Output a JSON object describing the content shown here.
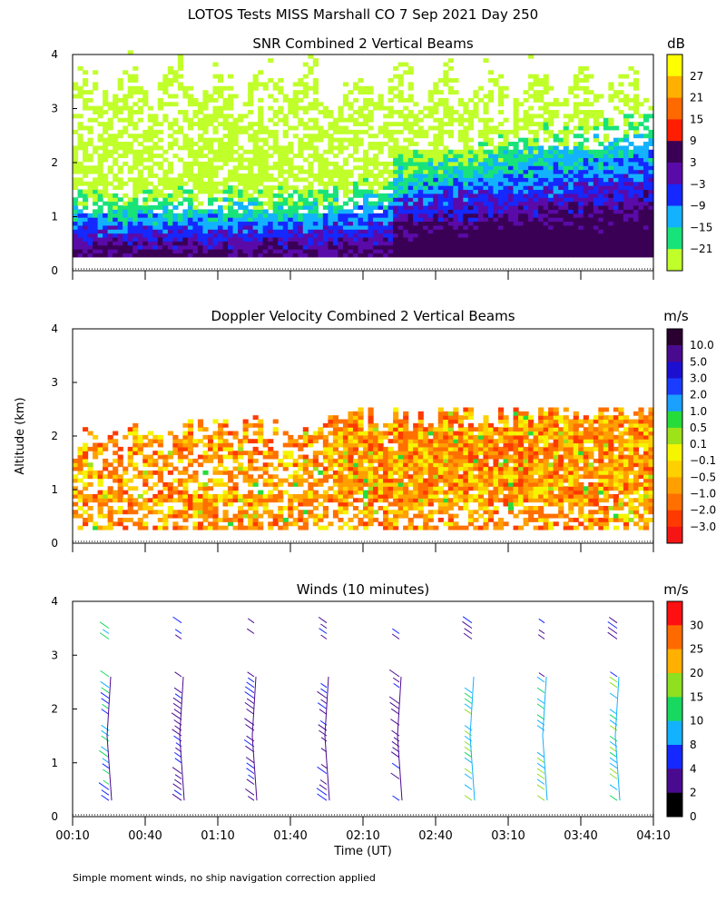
{
  "page_title": "LOTOS Tests MISS Marshall CO   7 Sep 2021 Day 250",
  "footnote": "Simple moment winds, no ship navigation correction applied",
  "chart_data": [
    {
      "type": "heatmap",
      "title": "SNR Combined 2 Vertical Beams",
      "colorbar_unit": "dB",
      "colorbar_ticks": [
        "27",
        "21",
        "15",
        "9",
        "3",
        "−3",
        "−9",
        "−15",
        "−21"
      ],
      "colorbar_colors": [
        "#ffff00",
        "#ffb000",
        "#ff6a00",
        "#ff1f00",
        "#3a0055",
        "#5a0aa8",
        "#1428ff",
        "#13b2ff",
        "#18e37a",
        "#c0ff2a"
      ],
      "ylabel": "Altitude (km)",
      "y_ticks": [
        "0",
        "1",
        "2",
        "3",
        "4"
      ],
      "ylim": [
        0,
        4
      ],
      "xlim": [
        "00:10",
        "04:10"
      ]
    },
    {
      "type": "heatmap",
      "title": "Doppler Velocity Combined 2 Vertical Beams",
      "colorbar_unit": "m/s",
      "colorbar_ticks": [
        "10.0",
        "5.0",
        "3.0",
        "2.0",
        "1.0",
        "0.5",
        "0.1",
        "−0.1",
        "−0.5",
        "−1.0",
        "−2.0",
        "−3.0"
      ],
      "colorbar_colors": [
        "#2a0030",
        "#4a0a90",
        "#1d0fd0",
        "#1a3cff",
        "#1aa0ff",
        "#26dc3a",
        "#9ee21a",
        "#f5f500",
        "#ffd000",
        "#ffa000",
        "#ff7000",
        "#ff3a00",
        "#f51515"
      ],
      "ylabel": "Altitude (km)",
      "y_ticks": [
        "0",
        "1",
        "2",
        "3",
        "4"
      ],
      "ylim": [
        0,
        4
      ],
      "xlim": [
        "00:10",
        "04:10"
      ]
    },
    {
      "type": "scatter",
      "title": "Winds (10 minutes)",
      "colorbar_unit": "m/s",
      "colorbar_ticks": [
        "30",
        "25",
        "20",
        "15",
        "10",
        "8",
        "4",
        "2",
        "0"
      ],
      "colorbar_colors": [
        "#ff1010",
        "#ff6a00",
        "#ffb000",
        "#8ee020",
        "#18d860",
        "#13b2ff",
        "#1428ff",
        "#4a0a90",
        "#000000"
      ],
      "ylabel": "Altitude (km)",
      "xlabel": "Time (UT)",
      "y_ticks": [
        "0",
        "1",
        "2",
        "3",
        "4"
      ],
      "x_ticks": [
        "00:10",
        "00:40",
        "01:10",
        "01:40",
        "02:10",
        "02:40",
        "03:10",
        "03:40",
        "04:10"
      ],
      "ylim": [
        0,
        4
      ],
      "profile_times": [
        "00:25",
        "00:55",
        "01:25",
        "01:55",
        "02:25",
        "02:55",
        "03:25",
        "03:55"
      ]
    }
  ]
}
